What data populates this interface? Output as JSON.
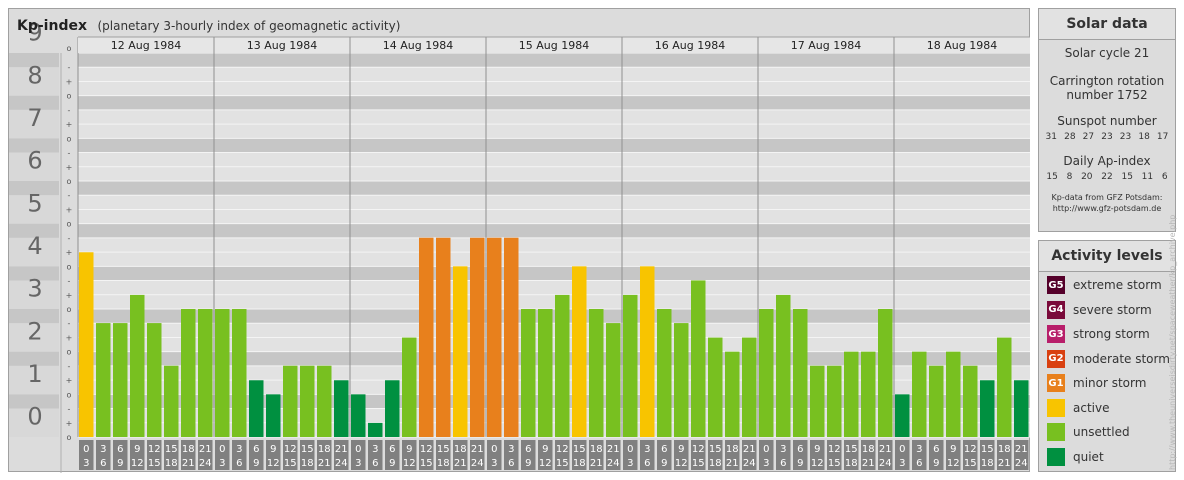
{
  "header": {
    "title": "Kp-index",
    "subtitle": "(planetary 3-hourly index of geomagnetic activity)"
  },
  "chart_data": {
    "type": "bar",
    "title": "Kp-index",
    "subtitle": "(planetary 3-hourly index of geomagnetic activity)",
    "ylim": [
      0,
      9
    ],
    "y_ticks": [
      "0",
      "1",
      "2",
      "3",
      "4",
      "5",
      "6",
      "7",
      "8",
      "9"
    ],
    "minor_marks": [
      "o",
      "+",
      "-"
    ],
    "days": [
      "12 Aug 1984",
      "13 Aug 1984",
      "14 Aug 1984",
      "15 Aug 1984",
      "16 Aug 1984",
      "17 Aug 1984",
      "18 Aug 1984"
    ],
    "hour_labels": [
      {
        "top": "0",
        "bottom": "3"
      },
      {
        "top": "3",
        "bottom": "6"
      },
      {
        "top": "6",
        "bottom": "9"
      },
      {
        "top": "9",
        "bottom": "12"
      },
      {
        "top": "12",
        "bottom": "15"
      },
      {
        "top": "15",
        "bottom": "18"
      },
      {
        "top": "18",
        "bottom": "21"
      },
      {
        "top": "21",
        "bottom": "24"
      }
    ],
    "values": [
      4.33,
      2.67,
      2.67,
      3.33,
      2.67,
      1.67,
      3.0,
      3.0,
      3.0,
      3.0,
      1.33,
      1.0,
      1.67,
      1.67,
      1.67,
      1.33,
      1.0,
      0.33,
      1.33,
      2.33,
      4.67,
      4.67,
      4.0,
      4.67,
      4.67,
      4.67,
      3.0,
      3.0,
      3.33,
      4.0,
      3.0,
      2.67,
      3.33,
      4.0,
      3.0,
      2.67,
      3.67,
      2.33,
      2.0,
      2.33,
      3.0,
      3.33,
      3.0,
      1.67,
      1.67,
      2.0,
      2.0,
      3.0,
      1.0,
      2.0,
      1.67,
      2.0,
      1.67,
      1.33,
      2.33,
      1.33
    ],
    "grid": true
  },
  "solar": {
    "title": "Solar data",
    "cycle": "Solar cycle 21",
    "carrington_line1": "Carrington rotation",
    "carrington_line2": "number 1752",
    "sunspot_title": "Sunspot number",
    "sunspot_values": [
      "31",
      "28",
      "27",
      "23",
      "23",
      "18",
      "17"
    ],
    "ap_title": "Daily Ap-index",
    "ap_values": [
      "15",
      "8",
      "20",
      "22",
      "15",
      "11",
      "6"
    ],
    "credit_line1": "Kp-data from GFZ Potsdam:",
    "credit_line2": "http://www.gfz-potsdam.de"
  },
  "levels": {
    "title": "Activity levels",
    "items": [
      {
        "code": "G5",
        "label": "extreme storm",
        "color": "#55002a"
      },
      {
        "code": "G4",
        "label": "severe storm",
        "color": "#7a0a3a"
      },
      {
        "code": "G3",
        "label": "strong storm",
        "color": "#b81e6a"
      },
      {
        "code": "G2",
        "label": "moderate storm",
        "color": "#d94010"
      },
      {
        "code": "G1",
        "label": "minor storm",
        "color": "#e8801c"
      },
      {
        "code": "",
        "label": "active",
        "color": "#f8c400"
      },
      {
        "code": "",
        "label": "unsettled",
        "color": "#78c020"
      },
      {
        "code": "",
        "label": "quiet",
        "color": "#009040"
      }
    ]
  },
  "colors": {
    "quiet": "#009040",
    "unsettled": "#78c020",
    "active": "#f8c400",
    "g1": "#e8801c",
    "g2": "#d94010"
  },
  "watermark": "http://www.theuniverseisdirty.net/spaceweather/kp_archive.php"
}
